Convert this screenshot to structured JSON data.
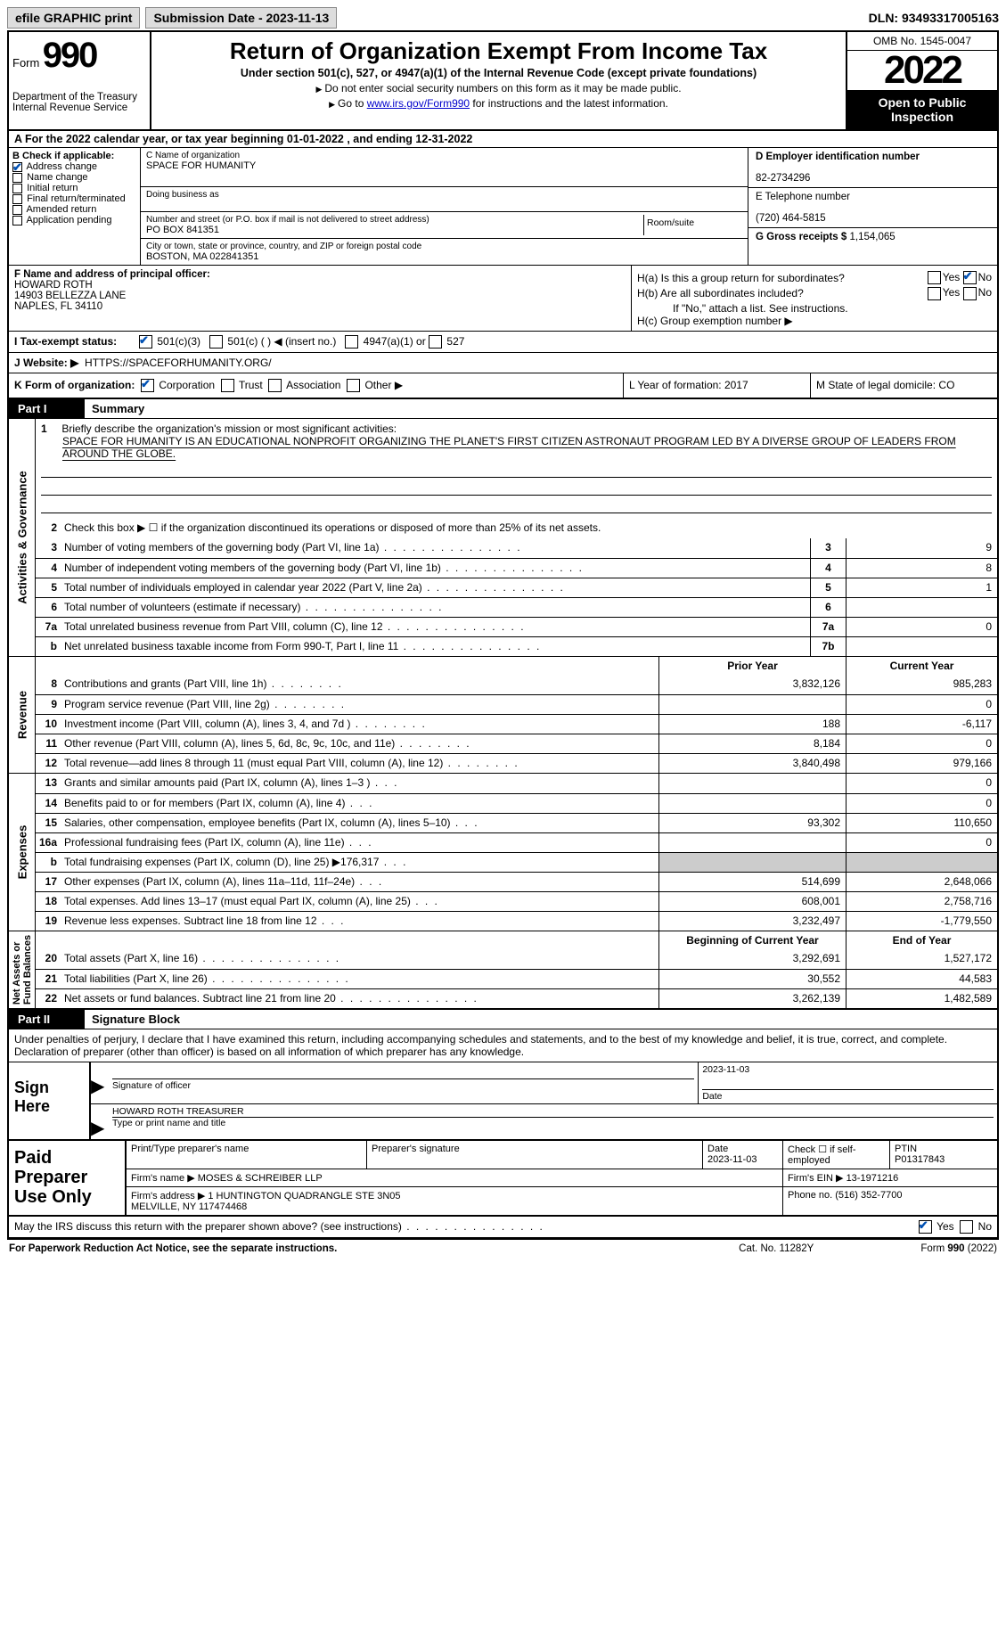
{
  "topbar": {
    "efile": "efile GRAPHIC print",
    "submission": "Submission Date - 2023-11-13",
    "dln": "DLN: 93493317005163"
  },
  "header": {
    "form": "Form",
    "form_no": "990",
    "dept": "Department of the Treasury\nInternal Revenue Service",
    "title": "Return of Organization Exempt From Income Tax",
    "sub": "Under section 501(c), 527, or 4947(a)(1) of the Internal Revenue Code (except private foundations)",
    "note1": "Do not enter social security numbers on this form as it may be made public.",
    "note2_pre": "Go to ",
    "note2_link": "www.irs.gov/Form990",
    "note2_post": " for instructions and the latest information.",
    "omb": "OMB No. 1545-0047",
    "year": "2022",
    "open": "Open to Public Inspection"
  },
  "row_a": {
    "pre": "A For the 2022 calendar year, or tax year beginning ",
    "begin": "01-01-2022",
    "mid": " , and ending ",
    "end": "12-31-2022"
  },
  "checkboxes": {
    "title": "B Check if applicable:",
    "addr": "Address change",
    "name": "Name change",
    "initial": "Initial return",
    "final": "Final return/terminated",
    "amended": "Amended return",
    "app": "Application pending"
  },
  "org": {
    "c_label": "C Name of organization",
    "name": "SPACE FOR HUMANITY",
    "dba_label": "Doing business as",
    "dba": "",
    "street_label": "Number and street (or P.O. box if mail is not delivered to street address)",
    "room_label": "Room/suite",
    "street": "PO BOX 841351",
    "city_label": "City or town, state or province, country, and ZIP or foreign postal code",
    "city": "BOSTON, MA  022841351"
  },
  "right_boxes": {
    "d_label": "D Employer identification number",
    "ein": "82-2734296",
    "e_label": "E Telephone number",
    "phone": "(720) 464-5815",
    "g_label": "G Gross receipts $",
    "gross": "1,154,065"
  },
  "officer": {
    "f_label": "F Name and address of principal officer:",
    "name": "HOWARD ROTH",
    "addr1": "14903 BELLEZZA LANE",
    "addr2": "NAPLES, FL  34110"
  },
  "h": {
    "a": "H(a)  Is this a group return for subordinates?",
    "b": "H(b)  Are all subordinates included?",
    "b_note": "If \"No,\" attach a list. See instructions.",
    "c": "H(c)  Group exemption number ▶",
    "yes": "Yes",
    "no": "No"
  },
  "row_i": {
    "label": "I  Tax-exempt status:",
    "o1": "501(c)(3)",
    "o2": "501(c) (  ) ◀ (insert no.)",
    "o3": "4947(a)(1) or",
    "o4": "527"
  },
  "row_j": {
    "label": "J  Website: ▶",
    "url": "HTTPS://SPACEFORHUMANITY.ORG/"
  },
  "row_k": {
    "label": "K Form of organization:",
    "corp": "Corporation",
    "trust": "Trust",
    "assoc": "Association",
    "other": "Other ▶",
    "l": "L Year of formation: 2017",
    "m": "M State of legal domicile: CO"
  },
  "part1": {
    "num": "Part I",
    "title": "Summary"
  },
  "part2": {
    "num": "Part II",
    "title": "Signature Block"
  },
  "vert": {
    "ag": "Activities & Governance",
    "rev": "Revenue",
    "exp": "Expenses",
    "na": "Net Assets or\nFund Balances"
  },
  "mission": {
    "num": "1",
    "intro": "Briefly describe the organization's mission or most significant activities:",
    "text": "SPACE FOR HUMANITY IS AN EDUCATIONAL NONPROFIT ORGANIZING THE PLANET'S FIRST CITIZEN ASTRONAUT PROGRAM LED BY A DIVERSE GROUP OF LEADERS FROM AROUND THE GLOBE."
  },
  "line2": {
    "num": "2",
    "text": "Check this box ▶ ☐ if the organization discontinued its operations or disposed of more than 25% of its net assets."
  },
  "lines_ag": [
    {
      "n": "3",
      "d": "Number of voting members of the governing body (Part VI, line 1a)",
      "box": "3",
      "v": "9"
    },
    {
      "n": "4",
      "d": "Number of independent voting members of the governing body (Part VI, line 1b)",
      "box": "4",
      "v": "8"
    },
    {
      "n": "5",
      "d": "Total number of individuals employed in calendar year 2022 (Part V, line 2a)",
      "box": "5",
      "v": "1"
    },
    {
      "n": "6",
      "d": "Total number of volunteers (estimate if necessary)",
      "box": "6",
      "v": ""
    },
    {
      "n": "7a",
      "d": "Total unrelated business revenue from Part VIII, column (C), line 12",
      "box": "7a",
      "v": "0"
    },
    {
      "n": "b",
      "d": "Net unrelated business taxable income from Form 990-T, Part I, line 11",
      "box": "7b",
      "v": ""
    }
  ],
  "col_hdr": {
    "prior": "Prior Year",
    "current": "Current Year",
    "boy": "Beginning of Current Year",
    "eoy": "End of Year"
  },
  "lines_rev": [
    {
      "n": "8",
      "d": "Contributions and grants (Part VIII, line 1h)",
      "p": "3,832,126",
      "c": "985,283"
    },
    {
      "n": "9",
      "d": "Program service revenue (Part VIII, line 2g)",
      "p": "",
      "c": "0"
    },
    {
      "n": "10",
      "d": "Investment income (Part VIII, column (A), lines 3, 4, and 7d )",
      "p": "188",
      "c": "-6,117"
    },
    {
      "n": "11",
      "d": "Other revenue (Part VIII, column (A), lines 5, 6d, 8c, 9c, 10c, and 11e)",
      "p": "8,184",
      "c": "0"
    },
    {
      "n": "12",
      "d": "Total revenue—add lines 8 through 11 (must equal Part VIII, column (A), line 12)",
      "p": "3,840,498",
      "c": "979,166"
    }
  ],
  "lines_exp": [
    {
      "n": "13",
      "d": "Grants and similar amounts paid (Part IX, column (A), lines 1–3 )",
      "p": "",
      "c": "0"
    },
    {
      "n": "14",
      "d": "Benefits paid to or for members (Part IX, column (A), line 4)",
      "p": "",
      "c": "0"
    },
    {
      "n": "15",
      "d": "Salaries, other compensation, employee benefits (Part IX, column (A), lines 5–10)",
      "p": "93,302",
      "c": "110,650"
    },
    {
      "n": "16a",
      "d": "Professional fundraising fees (Part IX, column (A), line 11e)",
      "p": "",
      "c": "0"
    },
    {
      "n": "b",
      "d": "Total fundraising expenses (Part IX, column (D), line 25) ▶176,317",
      "p": "GRAY",
      "c": "GRAY"
    },
    {
      "n": "17",
      "d": "Other expenses (Part IX, column (A), lines 11a–11d, 11f–24e)",
      "p": "514,699",
      "c": "2,648,066"
    },
    {
      "n": "18",
      "d": "Total expenses. Add lines 13–17 (must equal Part IX, column (A), line 25)",
      "p": "608,001",
      "c": "2,758,716"
    },
    {
      "n": "19",
      "d": "Revenue less expenses. Subtract line 18 from line 12",
      "p": "3,232,497",
      "c": "-1,779,550"
    }
  ],
  "lines_na": [
    {
      "n": "20",
      "d": "Total assets (Part X, line 16)",
      "p": "3,292,691",
      "c": "1,527,172"
    },
    {
      "n": "21",
      "d": "Total liabilities (Part X, line 26)",
      "p": "30,552",
      "c": "44,583"
    },
    {
      "n": "22",
      "d": "Net assets or fund balances. Subtract line 21 from line 20",
      "p": "3,262,139",
      "c": "1,482,589"
    }
  ],
  "sig_intro": "Under penalties of perjury, I declare that I have examined this return, including accompanying schedules and statements, and to the best of my knowledge and belief, it is true, correct, and complete. Declaration of preparer (other than officer) is based on all information of which preparer has any knowledge.",
  "sign": {
    "here": "Sign Here",
    "sig_label": "Signature of officer",
    "date_label": "Date",
    "date": "2023-11-03",
    "name": "HOWARD ROTH  TREASURER",
    "name_label": "Type or print name and title"
  },
  "paid": {
    "title": "Paid Preparer Use Only",
    "r1": {
      "print": "Print/Type preparer's name",
      "sig": "Preparer's signature",
      "date_l": "Date",
      "date": "2023-11-03",
      "check": "Check ☐ if self-employed",
      "ptin_l": "PTIN",
      "ptin": "P01317843"
    },
    "r2": {
      "firm_l": "Firm's name   ▶",
      "firm": "MOSES & SCHREIBER LLP",
      "ein_l": "Firm's EIN ▶",
      "ein": "13-1971216"
    },
    "r3": {
      "addr_l": "Firm's address ▶",
      "addr": "1 HUNTINGTON QUADRANGLE STE 3N05\nMELVILLE, NY  117474468",
      "phone_l": "Phone no.",
      "phone": "(516) 352-7700"
    }
  },
  "discuss": {
    "q": "May the IRS discuss this return with the preparer shown above? (see instructions)",
    "yes": "Yes",
    "no": "No"
  },
  "foot": {
    "l": "For Paperwork Reduction Act Notice, see the separate instructions.",
    "c": "Cat. No. 11282Y",
    "r": "Form 990 (2022)"
  }
}
